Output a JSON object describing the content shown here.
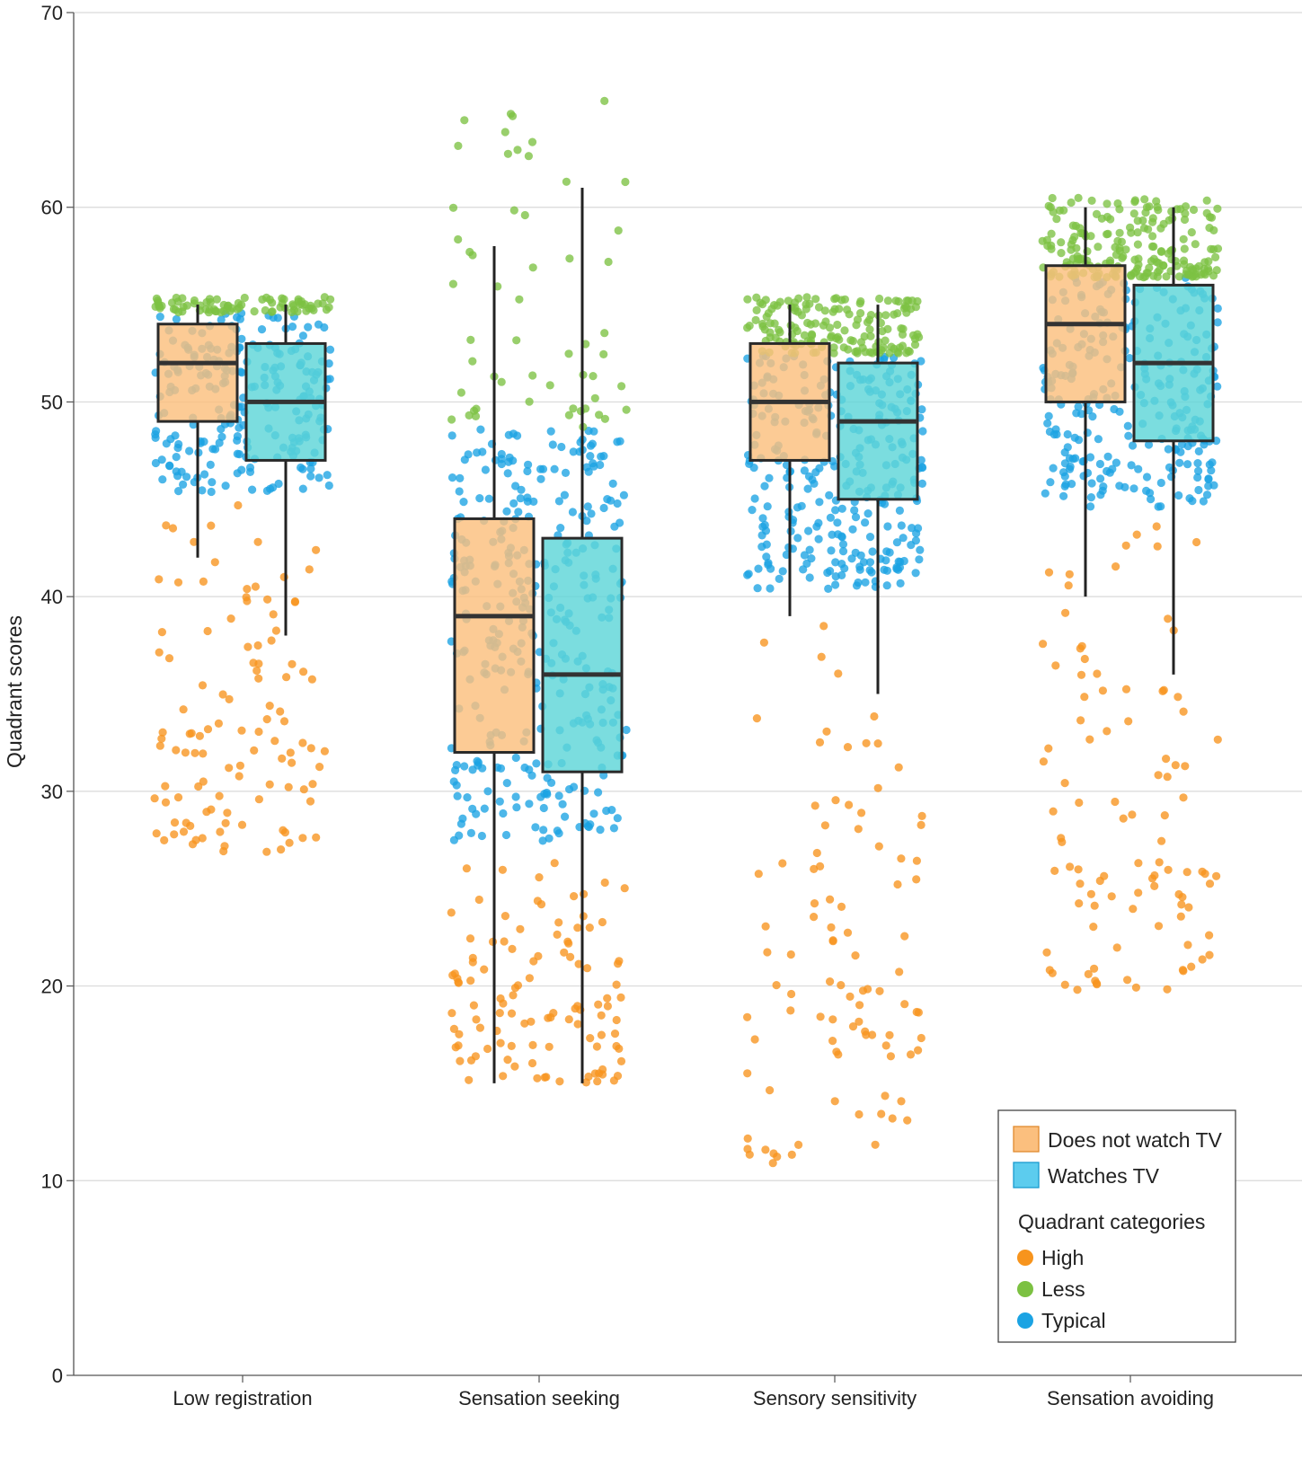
{
  "chart_data": {
    "type": "box",
    "ylabel": "Quadrant scores",
    "xlabel": "",
    "ylim": [
      0,
      70
    ],
    "yticks": [
      0,
      10,
      20,
      30,
      40,
      50,
      60,
      70
    ],
    "grid": "horizontal",
    "legend_position": "bottom-right",
    "categories": [
      "Low registration",
      "Sensation seeking",
      "Sensory sensitivity",
      "Sensation avoiding"
    ],
    "series": [
      {
        "name": "Does not watch TV",
        "color": "#FBBF7E",
        "boxes": [
          {
            "category": "Low registration",
            "min": 42,
            "q1": 49,
            "median": 52,
            "q3": 54,
            "max": 55
          },
          {
            "category": "Sensation seeking",
            "min": 15,
            "q1": 32,
            "median": 39,
            "q3": 44,
            "max": 58
          },
          {
            "category": "Sensory sensitivity",
            "min": 39,
            "q1": 47,
            "median": 50,
            "q3": 53,
            "max": 55
          },
          {
            "category": "Sensation avoiding",
            "min": 40,
            "q1": 50,
            "median": 54,
            "q3": 57,
            "max": 60
          }
        ]
      },
      {
        "name": "Watches TV",
        "color": "#5ED6D8",
        "boxes": [
          {
            "category": "Low registration",
            "min": 38,
            "q1": 47,
            "median": 50,
            "q3": 53,
            "max": 55
          },
          {
            "category": "Sensation seeking",
            "min": 15,
            "q1": 31,
            "median": 36,
            "q3": 43,
            "max": 61
          },
          {
            "category": "Sensory sensitivity",
            "min": 35,
            "q1": 45,
            "median": 49,
            "q3": 52,
            "max": 55
          },
          {
            "category": "Sensation avoiding",
            "min": 36,
            "q1": 48,
            "median": 52,
            "q3": 56,
            "max": 60
          }
        ]
      }
    ],
    "legend": {
      "groups": [
        {
          "label": "Does not watch TV",
          "color": "#FBBF7E",
          "border": "#E08A2E"
        },
        {
          "label": "Watches TV",
          "color": "#5CCCEE",
          "border": "#1A9AD0"
        }
      ],
      "points_title": "Quadrant categories",
      "points": [
        {
          "label": "High",
          "color": "#F7941D"
        },
        {
          "label": "Less",
          "color": "#7CC142"
        },
        {
          "label": "Typical",
          "color": "#1BA3E3"
        }
      ]
    },
    "point_ranges": [
      {
        "category": "Low registration",
        "high": [
          26.7,
          45.3
        ],
        "typical": [
          45.3,
          54.6
        ],
        "less": [
          54.6,
          55.4
        ]
      },
      {
        "category": "Sensation seeking",
        "high": [
          14.9,
          27.4
        ],
        "typical": [
          27.4,
          48.6
        ],
        "less": [
          48.6,
          66.0
        ]
      },
      {
        "category": "Sensory sensitivity",
        "high": [
          10.9,
          40.4
        ],
        "typical": [
          40.4,
          52.5
        ],
        "less": [
          52.5,
          55.4
        ]
      },
      {
        "category": "Sensation avoiding",
        "high": [
          19.7,
          44.6
        ],
        "typical": [
          44.6,
          56.4
        ],
        "less": [
          56.4,
          60.5
        ]
      }
    ]
  }
}
